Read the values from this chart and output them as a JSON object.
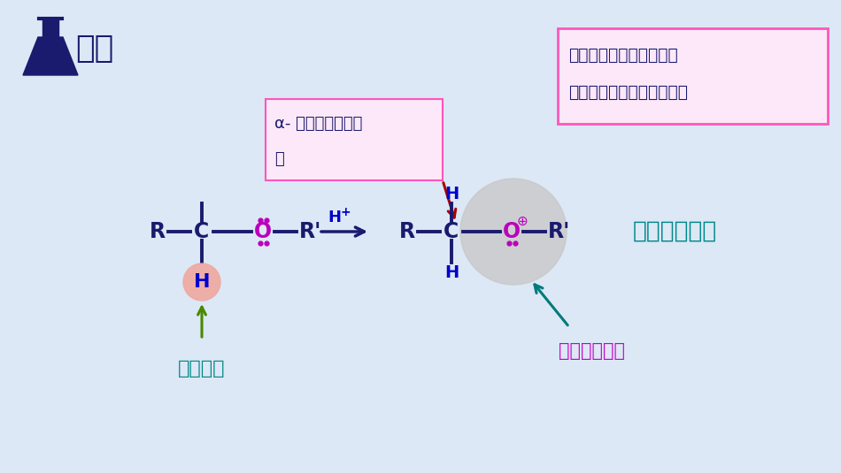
{
  "bg_color": "#dce8f5",
  "title": "总论",
  "title_color": "#1a1a6e",
  "title_fontsize": 26,
  "navy": "#1a1a6e",
  "O_color": "#bb00bb",
  "H_color": "#0000cc",
  "green_arrow": "#4a8800",
  "red_arrow": "#aa0000",
  "teal_arrow": "#007a7a",
  "pink_box_edge": "#ff55bb",
  "pink_box_bg": "#fce8f8",
  "label_yi_color": "#008888",
  "label_qin_color": "#008888",
  "label_jiao_color": "#cc00cc",
  "box1_line1": "α- 碳电子云密度较",
  "box1_line2": "低",
  "box2_line1": "醚在中性、碱性和弱酸性",
  "box2_line2": "条件下稳定，常用作溶剂。",
  "label_yi": "易被氧化",
  "label_qin": "亲核取代反应",
  "label_jiao": "较好的离去基"
}
